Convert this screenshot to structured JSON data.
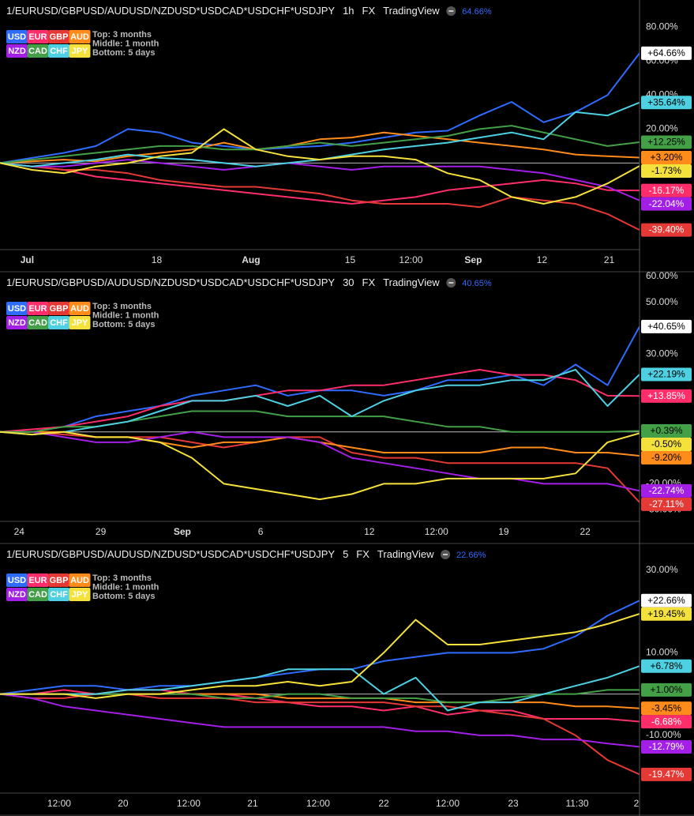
{
  "chart_data": [
    {
      "type": "line",
      "title": "1/EURUSD/GBPUSD/AUDUSD/NZDUSD*USDCAD*USDCHF*USDJPY",
      "interval": "1h",
      "exchange": "FX",
      "source": "TradingView",
      "header_value": "64.66%",
      "legend_notes": [
        "Top: 3 months",
        "Middle: 1 month",
        "Bottom: 5 days"
      ],
      "x": [
        0,
        2,
        4,
        6,
        8,
        10,
        12,
        14,
        16,
        18,
        20,
        22,
        24,
        26,
        28,
        30,
        32,
        34,
        36,
        38,
        40
      ],
      "xlim": [
        0,
        40
      ],
      "ylim": [
        -51,
        96
      ],
      "xticks": [
        {
          "value": 1.7,
          "label": "Jul"
        },
        {
          "value": 9.8,
          "label": "18"
        },
        {
          "value": 15.7,
          "label": "Aug"
        },
        {
          "value": 21.9,
          "label": "15"
        },
        {
          "value": 25.7,
          "label": "12:00"
        },
        {
          "value": 29.6,
          "label": "Sep"
        },
        {
          "value": 33.9,
          "label": "12"
        },
        {
          "value": 38.1,
          "label": "21"
        }
      ],
      "yticks": [
        {
          "value": 80,
          "label": "80.00%"
        },
        {
          "value": 60,
          "label": "60.00%"
        },
        {
          "value": 40,
          "label": "40.00%"
        },
        {
          "value": 20,
          "label": "20.00%"
        }
      ],
      "series": [
        {
          "name": "USD",
          "color": "#2f6bff",
          "last_label": "+64.66%",
          "values": [
            0,
            3,
            6,
            10,
            20,
            18,
            12,
            10,
            8,
            9,
            10,
            12,
            15,
            18,
            19,
            28,
            36,
            24,
            30,
            40,
            64.66
          ]
        },
        {
          "name": "EUR",
          "color": "#ff2e6b",
          "last_label": "-16.17%",
          "values": [
            0,
            -2,
            -4,
            -8,
            -10,
            -12,
            -14,
            -16,
            -18,
            -20,
            -22,
            -24,
            -22,
            -20,
            -16,
            -14,
            -12,
            -10,
            -12,
            -16,
            -16.17
          ]
        },
        {
          "name": "GBP",
          "color": "#e53935",
          "last_label": "-39.40%",
          "values": [
            0,
            -2,
            -4,
            -4,
            -6,
            -10,
            -12,
            -14,
            -14,
            -16,
            -18,
            -22,
            -24,
            -24,
            -24,
            -26,
            -20,
            -22,
            -24,
            -30,
            -39.4
          ]
        },
        {
          "name": "AUD",
          "color": "#ff8c1a",
          "last_label": "+3.20%",
          "values": [
            0,
            1,
            2,
            1,
            4,
            6,
            8,
            12,
            8,
            10,
            14,
            15,
            18,
            16,
            14,
            12,
            10,
            8,
            5,
            4,
            3.2
          ]
        },
        {
          "name": "NZD",
          "color": "#a31fe6",
          "last_label": "-22.04%",
          "values": [
            0,
            -2,
            -2,
            0,
            2,
            0,
            -2,
            -4,
            -2,
            0,
            -2,
            -4,
            -2,
            -2,
            -2,
            -2,
            -4,
            -6,
            -10,
            -14,
            -22.04
          ]
        },
        {
          "name": "CAD",
          "color": "#43a047",
          "last_label": "+12.25%",
          "values": [
            0,
            2,
            4,
            6,
            8,
            10,
            10,
            8,
            8,
            10,
            12,
            10,
            12,
            14,
            16,
            20,
            22,
            18,
            14,
            10,
            12.25
          ]
        },
        {
          "name": "CHF",
          "color": "#4dd0e1",
          "last_label": "+35.64%",
          "values": [
            0,
            -2,
            0,
            2,
            5,
            3,
            2,
            0,
            -2,
            0,
            2,
            5,
            8,
            10,
            12,
            15,
            18,
            14,
            30,
            28,
            35.64
          ]
        },
        {
          "name": "JPY",
          "color": "#f5e13b",
          "last_label": "-1.73%",
          "values": [
            0,
            -4,
            -6,
            -2,
            0,
            4,
            6,
            20,
            8,
            4,
            2,
            4,
            4,
            2,
            -6,
            -10,
            -20,
            -24,
            -20,
            -12,
            -1.73
          ]
        }
      ]
    },
    {
      "type": "line",
      "title": "1/EURUSD/GBPUSD/AUDUSD/NZDUSD*USDCAD*USDCHF*USDJPY",
      "interval": "30",
      "exchange": "FX",
      "source": "TradingView",
      "header_value": "40.65%",
      "legend_notes": [
        "Top: 3 months",
        "Middle: 1 month",
        "Bottom: 5 days"
      ],
      "x": [
        0,
        2,
        4,
        6,
        8,
        10,
        12,
        14,
        16,
        18,
        20,
        22,
        24,
        26,
        28,
        30,
        32,
        34,
        36,
        38,
        40
      ],
      "xlim": [
        0,
        40
      ],
      "ylim": [
        -34.5,
        61.8
      ],
      "xticks": [
        {
          "value": 1.2,
          "label": "24"
        },
        {
          "value": 6.3,
          "label": "29"
        },
        {
          "value": 11.4,
          "label": "Sep"
        },
        {
          "value": 16.3,
          "label": "6"
        },
        {
          "value": 23.1,
          "label": "12"
        },
        {
          "value": 27.3,
          "label": "12:00"
        },
        {
          "value": 31.5,
          "label": "19"
        },
        {
          "value": 36.6,
          "label": "22"
        }
      ],
      "yticks": [
        {
          "value": 60,
          "label": "60.00%"
        },
        {
          "value": 50,
          "label": "50.00%"
        },
        {
          "value": 30,
          "label": "30.00%"
        },
        {
          "value": -20,
          "label": "-20.00%"
        },
        {
          "value": -30,
          "label": "-30.00%"
        }
      ],
      "series": [
        {
          "name": "USD",
          "color": "#2f6bff",
          "last_label": "+40.65%",
          "values": [
            0,
            0,
            2,
            6,
            8,
            10,
            14,
            16,
            18,
            14,
            16,
            16,
            14,
            16,
            20,
            20,
            22,
            18,
            26,
            18,
            40.65
          ]
        },
        {
          "name": "EUR",
          "color": "#ff2e6b",
          "last_label": "+13.85%",
          "values": [
            0,
            1,
            2,
            4,
            6,
            10,
            12,
            12,
            14,
            16,
            16,
            18,
            18,
            20,
            22,
            24,
            22,
            22,
            20,
            14,
            13.85
          ]
        },
        {
          "name": "GBP",
          "color": "#e53935",
          "last_label": "-27.11%",
          "values": [
            0,
            0,
            -1,
            -2,
            -2,
            -2,
            -4,
            -6,
            -4,
            -2,
            -2,
            -8,
            -10,
            -10,
            -12,
            -12,
            -12,
            -12,
            -12,
            -14,
            -27.11
          ]
        },
        {
          "name": "AUD",
          "color": "#ff8c1a",
          "last_label": "-9.20%",
          "values": [
            0,
            0,
            0,
            -2,
            -2,
            -4,
            -6,
            -4,
            -4,
            -2,
            -4,
            -6,
            -8,
            -8,
            -8,
            -8,
            -6,
            -6,
            -8,
            -8,
            -9.2
          ]
        },
        {
          "name": "NZD",
          "color": "#a31fe6",
          "last_label": "-22.74%",
          "values": [
            0,
            0,
            -2,
            -4,
            -4,
            -2,
            0,
            -2,
            -2,
            -2,
            -4,
            -10,
            -12,
            -14,
            -16,
            -18,
            -18,
            -20,
            -20,
            -20,
            -22.74
          ]
        },
        {
          "name": "CAD",
          "color": "#43a047",
          "last_label": "+0.39%",
          "values": [
            0,
            0,
            2,
            2,
            4,
            6,
            8,
            8,
            8,
            6,
            6,
            6,
            6,
            4,
            2,
            2,
            0,
            0,
            0,
            0,
            0.39
          ]
        },
        {
          "name": "CHF",
          "color": "#4dd0e1",
          "last_label": "+22.19%",
          "values": [
            0,
            -1,
            0,
            2,
            4,
            8,
            12,
            12,
            14,
            10,
            14,
            6,
            12,
            16,
            18,
            18,
            20,
            20,
            24,
            10,
            22.19
          ]
        },
        {
          "name": "JPY",
          "color": "#f5e13b",
          "last_label": "-0.50%",
          "values": [
            0,
            -1,
            0,
            -2,
            -2,
            -4,
            -10,
            -20,
            -22,
            -24,
            -26,
            -24,
            -20,
            -20,
            -18,
            -18,
            -18,
            -18,
            -16,
            -4,
            -0.5
          ]
        }
      ]
    },
    {
      "type": "line",
      "title": "1/EURUSD/GBPUSD/AUDUSD/NZDUSD*USDCAD*USDCHF*USDJPY",
      "interval": "5",
      "exchange": "FX",
      "source": "TradingView",
      "header_value": "22.66%",
      "legend_notes": [
        "Top: 3 months",
        "Middle: 1 month",
        "Bottom: 5 days"
      ],
      "x": [
        0,
        2,
        4,
        6,
        8,
        10,
        12,
        14,
        16,
        18,
        20,
        22,
        24,
        26,
        28,
        30,
        32,
        34,
        36,
        38,
        40
      ],
      "xlim": [
        0,
        40
      ],
      "ylim": [
        -24,
        36.5
      ],
      "xticks": [
        {
          "value": 3.7,
          "label": "12:00"
        },
        {
          "value": 7.7,
          "label": "20"
        },
        {
          "value": 11.8,
          "label": "12:00"
        },
        {
          "value": 15.8,
          "label": "21"
        },
        {
          "value": 19.9,
          "label": "12:00"
        },
        {
          "value": 24,
          "label": "22"
        },
        {
          "value": 28,
          "label": "12:00"
        },
        {
          "value": 32.1,
          "label": "23"
        },
        {
          "value": 36.1,
          "label": "11:30"
        },
        {
          "value": 39.8,
          "label": "2"
        }
      ],
      "yticks": [
        {
          "value": 30,
          "label": "30.00%"
        },
        {
          "value": 10,
          "label": "10.00%"
        },
        {
          "value": -10,
          "label": "-10.00%"
        }
      ],
      "series": [
        {
          "name": "USD",
          "color": "#2f6bff",
          "last_label": "+22.66%",
          "values": [
            0,
            1,
            2,
            2,
            1,
            2,
            2,
            3,
            4,
            5,
            6,
            6,
            8,
            9,
            10,
            10,
            10,
            11,
            14,
            19,
            22.66
          ]
        },
        {
          "name": "EUR",
          "color": "#ff2e6b",
          "last_label": "-6.68%",
          "values": [
            0,
            0,
            1,
            0,
            1,
            1,
            0,
            0,
            -1,
            -2,
            -3,
            -3,
            -4,
            -3,
            -5,
            -4,
            -4,
            -6,
            -6,
            -6,
            -6.68
          ]
        },
        {
          "name": "GBP",
          "color": "#e53935",
          "last_label": "-19.47%",
          "values": [
            0,
            -1,
            -1,
            0,
            0,
            -1,
            -1,
            -1,
            -2,
            -2,
            -2,
            -2,
            -2,
            -3,
            -3,
            -4,
            -5,
            -6,
            -10,
            -16,
            -19.47
          ]
        },
        {
          "name": "AUD",
          "color": "#ff8c1a",
          "last_label": "-3.45%",
          "values": [
            0,
            0,
            0,
            0,
            0,
            0,
            0,
            0,
            0,
            -1,
            -1,
            -1,
            -1,
            -2,
            -2,
            -2,
            -2,
            -2,
            -3,
            -3,
            -3.45
          ]
        },
        {
          "name": "NZD",
          "color": "#a31fe6",
          "last_label": "-12.79%",
          "values": [
            0,
            -1,
            -3,
            -4,
            -5,
            -6,
            -7,
            -8,
            -8,
            -8,
            -8,
            -8,
            -8,
            -9,
            -9,
            -10,
            -10,
            -11,
            -11,
            -12,
            -12.79
          ]
        },
        {
          "name": "CAD",
          "color": "#43a047",
          "last_label": "+1.00%",
          "values": [
            0,
            0,
            0,
            0,
            0,
            0,
            0,
            -1,
            -1,
            0,
            0,
            -1,
            -1,
            -1,
            -2,
            -2,
            -1,
            0,
            0,
            1,
            1.0
          ]
        },
        {
          "name": "CHF",
          "color": "#4dd0e1",
          "last_label": "+6.78%",
          "values": [
            0,
            0,
            0,
            0,
            1,
            1,
            2,
            3,
            4,
            6,
            6,
            6,
            0,
            4,
            -4,
            -2,
            -2,
            0,
            2,
            4,
            6.78
          ]
        },
        {
          "name": "JPY",
          "color": "#f5e13b",
          "last_label": "+19.45%",
          "values": [
            0,
            0,
            0,
            -1,
            0,
            0,
            1,
            2,
            2,
            3,
            2,
            3,
            10,
            18,
            12,
            12,
            13,
            14,
            15,
            17,
            19.45
          ]
        }
      ]
    }
  ]
}
